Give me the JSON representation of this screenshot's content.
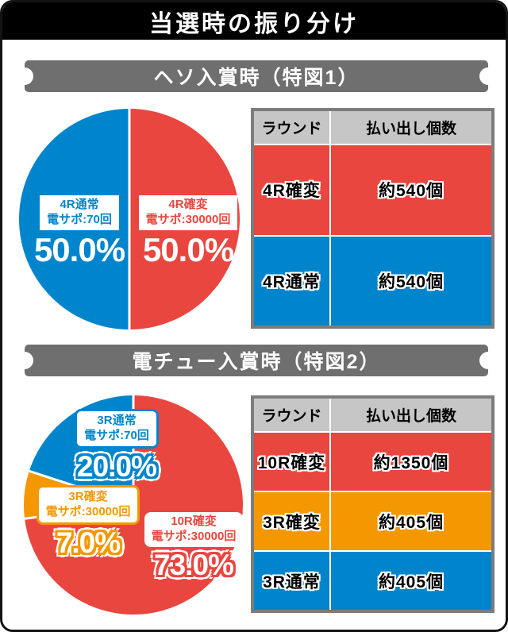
{
  "page": {
    "title": "当選時の振り分け"
  },
  "colors": {
    "red": "#e9463f",
    "blue": "#0085cc",
    "orange": "#f39800",
    "table_header_gray": "#c6c6c6",
    "plaque_gray": "#6f6f6f",
    "title_band_black": "#000000"
  },
  "sections": [
    {
      "header": "ヘソ入賞時（特図1）",
      "table": {
        "col_headers": [
          "ラウンド",
          "払い出し個数"
        ],
        "rows": [
          {
            "round": "4R確変",
            "payout": "約540個",
            "bg": "#e9463f"
          },
          {
            "round": "4R通常",
            "payout": "約540個",
            "bg": "#0085cc"
          }
        ]
      }
    },
    {
      "header": "電チュー入賞時（特図2）",
      "table": {
        "col_headers": [
          "ラウンド",
          "払い出し個数"
        ],
        "rows": [
          {
            "round": "10R確変",
            "payout": "約1350個",
            "bg": "#e9463f"
          },
          {
            "round": "3R確変",
            "payout": "約405個",
            "bg": "#f39800"
          },
          {
            "round": "3R通常",
            "payout": "約405個",
            "bg": "#0085cc"
          }
        ]
      }
    }
  ],
  "chart_data": [
    {
      "type": "pie",
      "title": "ヘソ入賞時（特図1）",
      "start_angle_deg": 0,
      "direction": "clockwise",
      "slices": [
        {
          "label": "4R確変",
          "sublabel": "電サポ:30000回",
          "value": 50.0,
          "value_text": "50.0%",
          "color": "#e9463f"
        },
        {
          "label": "4R通常",
          "sublabel": "電サポ:70回",
          "value": 50.0,
          "value_text": "50.0%",
          "color": "#0085cc"
        }
      ]
    },
    {
      "type": "pie",
      "title": "電チュー入賞時（特図2）",
      "start_angle_deg": 0,
      "direction": "clockwise",
      "slices": [
        {
          "label": "10R確変",
          "sublabel": "電サポ:30000回",
          "value": 73.0,
          "value_text": "73.0%",
          "color": "#e9463f"
        },
        {
          "label": "3R確変",
          "sublabel": "電サポ:30000回",
          "value": 7.0,
          "value_text": "7.0%",
          "color": "#f39800"
        },
        {
          "label": "3R通常",
          "sublabel": "電サポ:70回",
          "value": 20.0,
          "value_text": "20.0%",
          "color": "#0085cc"
        }
      ]
    }
  ]
}
